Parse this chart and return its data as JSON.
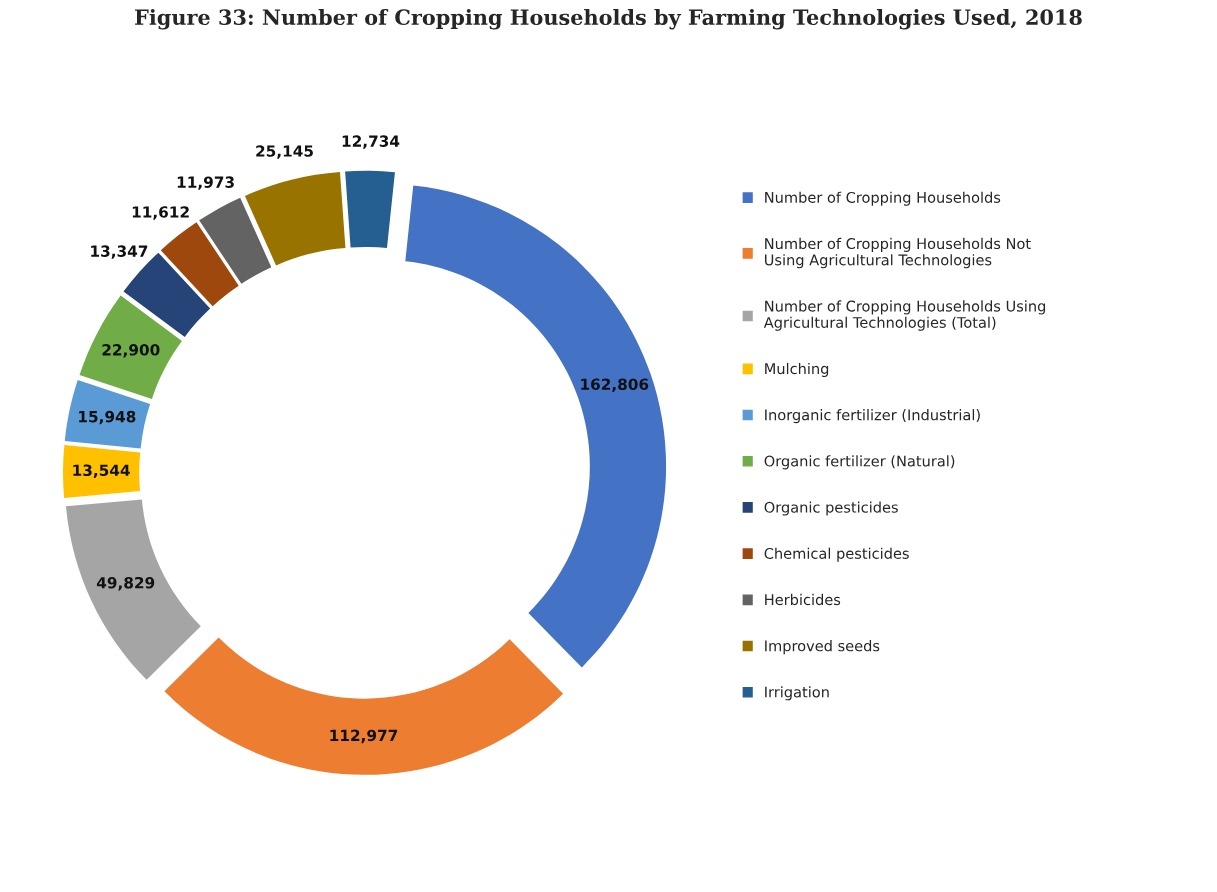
{
  "chart_data": {
    "type": "donut",
    "title": "Figure 33: Number of Cropping Households by Farming Technologies Used, 2018",
    "categories": [
      "Number of Cropping Households",
      "Number of Cropping Households Not Using Agricultural Technologies",
      "Number of Cropping Households Using Agricultural Technologies (Total)",
      "Mulching",
      "Inorganic fertilizer (Industrial)",
      "Organic fertilizer (Natural)",
      "Organic pesticides",
      "Chemical pesticides",
      "Herbicides",
      "Improved seeds",
      "Irrigation"
    ],
    "values": [
      162806,
      112977,
      49829,
      13544,
      15948,
      22900,
      13347,
      11612,
      11973,
      25145,
      12734
    ],
    "colors": [
      "#4472c4",
      "#ed7d31",
      "#a5a5a5",
      "#ffc000",
      "#5b9bd5",
      "#70ad47",
      "#264478",
      "#9e480e",
      "#636363",
      "#997300",
      "#255e91"
    ],
    "value_labels": [
      "162,806",
      "112,977",
      "49,829",
      "13,544",
      "15,948",
      "22,900",
      "13,347",
      "11,612",
      "11,973",
      "25,145",
      "12,734"
    ],
    "legend": "right"
  }
}
